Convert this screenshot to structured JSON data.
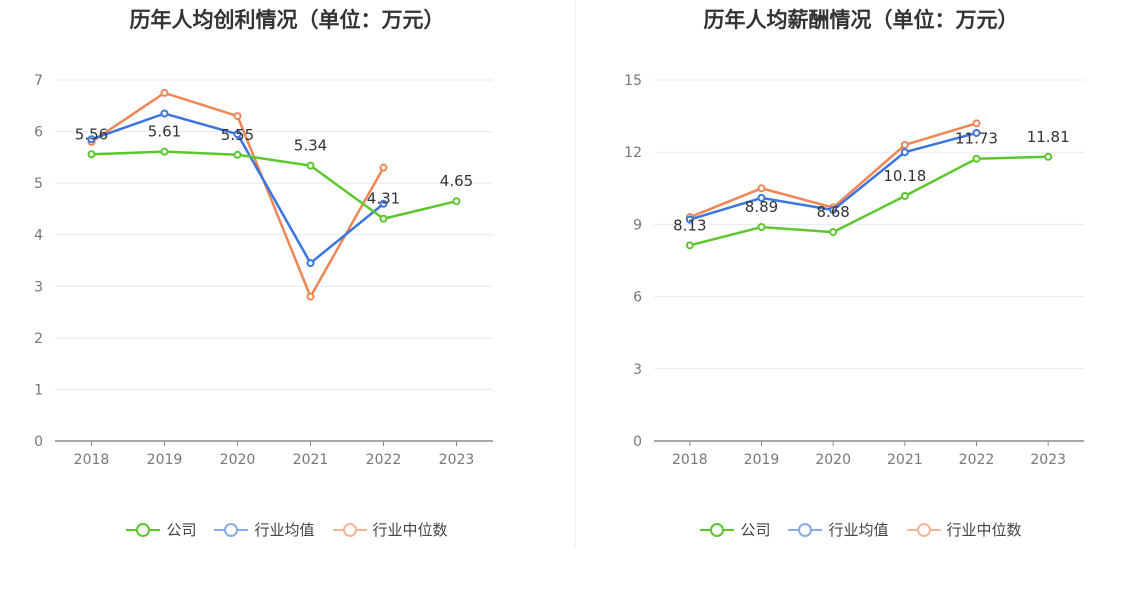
{
  "charts": [
    {
      "title": "历年人均创利情况（单位：万元）"
    },
    {
      "title": "历年人均薪酬情况（单位：万元）"
    }
  ],
  "legend": [
    "公司",
    "行业均值",
    "行业中位数"
  ],
  "colors": {
    "company": "#5cc72d",
    "industry_avg": "#3a75e0",
    "industry_median": "#ee8655",
    "legend_company": "#5cc72d",
    "legend_avg": "#8aabe9",
    "legend_median": "#f5b596"
  },
  "chart_data": [
    {
      "type": "line",
      "title": "历年人均创利情况（单位：万元）",
      "x": [
        "2018",
        "2019",
        "2020",
        "2021",
        "2022",
        "2023"
      ],
      "ylim": [
        0,
        7
      ],
      "yticks": [
        0,
        1,
        2,
        3,
        4,
        5,
        6,
        7
      ],
      "grid": true,
      "legend_position": "bottom",
      "series": [
        {
          "name": "公司",
          "values": [
            5.56,
            5.61,
            5.55,
            5.34,
            4.31,
            4.65
          ],
          "labels": [
            "5.56",
            "5.61",
            "5.55",
            "5.34",
            "4.31",
            "4.65"
          ]
        },
        {
          "name": "行业均值",
          "values": [
            5.85,
            6.35,
            5.95,
            3.45,
            4.6,
            null
          ]
        },
        {
          "name": "行业中位数",
          "values": [
            5.8,
            6.75,
            6.3,
            2.8,
            5.3,
            null
          ]
        }
      ]
    },
    {
      "type": "line",
      "title": "历年人均薪酬情况（单位：万元）",
      "x": [
        "2018",
        "2019",
        "2020",
        "2021",
        "2022",
        "2023"
      ],
      "ylim": [
        0,
        15
      ],
      "yticks": [
        0,
        3,
        6,
        9,
        12,
        15
      ],
      "grid": true,
      "legend_position": "bottom",
      "series": [
        {
          "name": "公司",
          "values": [
            8.13,
            8.89,
            8.68,
            10.18,
            11.73,
            11.81
          ],
          "labels": [
            "8.13",
            "8.89",
            "8.68",
            "10.18",
            "11.73",
            "11.81"
          ]
        },
        {
          "name": "行业均值",
          "values": [
            9.2,
            10.1,
            9.6,
            12.0,
            12.8,
            null
          ]
        },
        {
          "name": "行业中位数",
          "values": [
            9.3,
            10.5,
            9.7,
            12.3,
            13.2,
            null
          ]
        }
      ]
    }
  ]
}
